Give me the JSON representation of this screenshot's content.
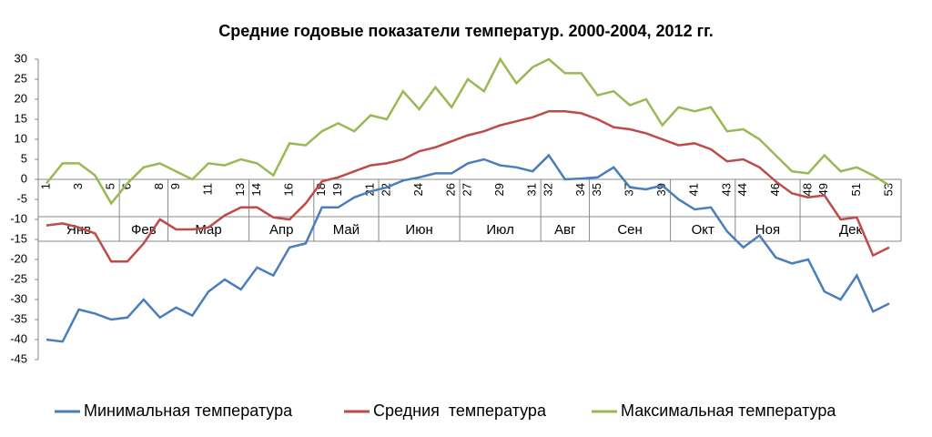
{
  "chart_data": {
    "type": "line",
    "title": "Средние годовые показатели температур. 2000-2004, 2012 гг.",
    "categories": [
      "1",
      null,
      "3",
      null,
      "5",
      "6",
      null,
      "8",
      "9",
      null,
      "11",
      null,
      "13",
      "14",
      null,
      "16",
      null,
      "18",
      "19",
      null,
      "21",
      "22",
      null,
      "24",
      null,
      "26",
      "27",
      null,
      "29",
      null,
      "31",
      "32",
      null,
      "34",
      "35",
      null,
      "37",
      null,
      "39",
      null,
      "41",
      null,
      "43",
      "44",
      null,
      "46",
      null,
      "48",
      "49",
      null,
      "51",
      null,
      "53"
    ],
    "months": [
      "Янв",
      "Фев",
      "Мар",
      "Апр",
      "Май",
      "Июн",
      "Июл",
      "Авг",
      "Сен",
      "Окт",
      "Ноя",
      "Дек"
    ],
    "series": [
      {
        "name": "Минимальная температура",
        "color": "#4a7ebb",
        "values": [
          -40,
          -40.5,
          -32.5,
          -33.5,
          -35,
          -34.5,
          -30,
          -34.5,
          -32,
          -34,
          -28,
          -25,
          -27.5,
          -22,
          -24,
          -17,
          -16,
          -7,
          -7,
          -4.5,
          -3,
          -2,
          -0.3,
          0.5,
          1.5,
          1.5,
          4,
          5,
          3.5,
          3,
          2,
          6,
          0,
          0.2,
          0.5,
          3,
          -2,
          -2.5,
          -1.5,
          -5,
          -7.5,
          -7,
          -13,
          -17,
          -14,
          -19.5,
          -21,
          -20,
          -28,
          -30,
          -24,
          -33,
          -31
        ]
      },
      {
        "name": "Средния  температура",
        "color": "#be4b48",
        "values": [
          -11.5,
          -11,
          -12,
          -13.5,
          -20.5,
          -20.5,
          -16,
          -10,
          -12.5,
          -12.5,
          -12,
          -9,
          -7,
          -7,
          -9.5,
          -10,
          -6,
          -0.5,
          0.5,
          2,
          3.5,
          4,
          5,
          7,
          8,
          9.5,
          11,
          12,
          13.5,
          14.5,
          15.5,
          17,
          17,
          16.5,
          15,
          13,
          12.5,
          11.5,
          10,
          8.5,
          9,
          7.5,
          4.5,
          5,
          3,
          -0.5,
          -3.5,
          -4.5,
          -4,
          -10,
          -9.5,
          -19,
          -17
        ]
      },
      {
        "name": "Максимальная температура",
        "color": "#98b954",
        "values": [
          -1,
          4,
          4,
          1,
          -6,
          -1,
          3,
          4,
          2,
          0,
          4,
          3.5,
          5,
          4,
          1,
          9,
          8.5,
          12,
          14,
          12,
          16,
          15,
          22,
          17.5,
          23,
          18,
          25,
          22,
          30,
          24,
          28,
          30,
          26.5,
          26.5,
          21,
          22,
          18.5,
          20,
          13.5,
          18,
          17,
          18,
          12,
          12.5,
          10,
          6,
          2,
          1.5,
          6,
          2,
          3,
          1,
          -1.5
        ]
      }
    ],
    "ylim": [
      -45,
      30
    ],
    "yticks": [
      30,
      25,
      20,
      15,
      10,
      5,
      0,
      -5,
      -10,
      -15,
      -20,
      -25,
      -30,
      -35,
      -40,
      -45
    ],
    "grid": false
  }
}
